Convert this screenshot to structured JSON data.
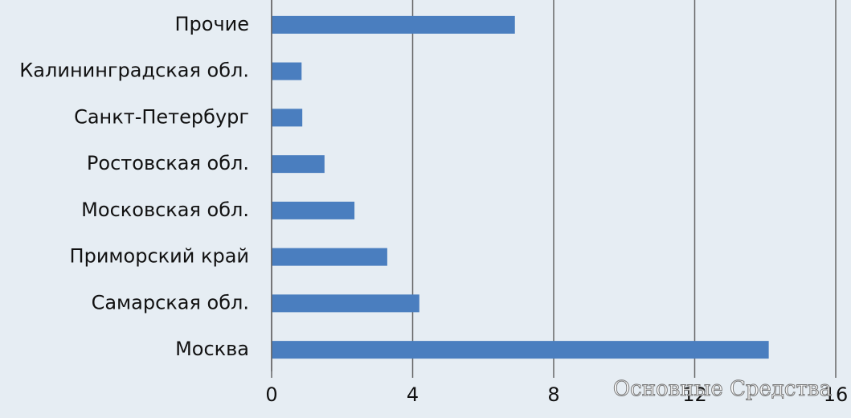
{
  "chart_data": {
    "type": "hbar",
    "categories": [
      "Прочие",
      "Калининградская обл.",
      "Санкт-Петербург",
      "Ростовская обл.",
      "Московская обл.",
      "Приморский край",
      "Самарская обл.",
      "Москва"
    ],
    "values": [
      6.9,
      0.85,
      0.87,
      1.5,
      2.35,
      3.28,
      4.19,
      14.1
    ],
    "color": "#4a7ebf",
    "xlim": [
      0,
      16
    ],
    "xticks": [
      0,
      4,
      8,
      12,
      16
    ],
    "grid": true,
    "watermark": "Основные Средства"
  }
}
